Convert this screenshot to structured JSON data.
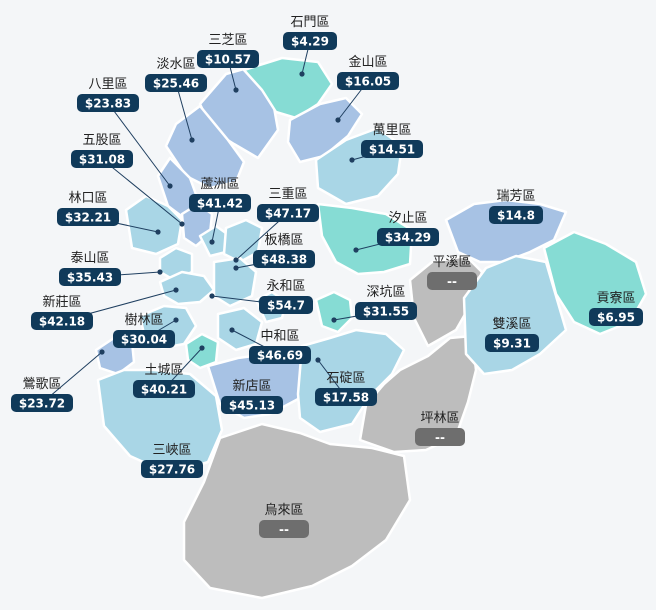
{
  "colors": {
    "teal": "#86dcd4",
    "light_blue": "#a9d6e6",
    "mid_blue": "#a7c2e4",
    "grey": "#bdbdbd",
    "badge": "#103a5a",
    "badge_na": "#6e6e6e"
  },
  "districts": [
    {
      "name": "石門區",
      "value": "$4.29"
    },
    {
      "name": "三芝區",
      "value": "$10.57"
    },
    {
      "name": "金山區",
      "value": "$16.05"
    },
    {
      "name": "淡水區",
      "value": "$25.46"
    },
    {
      "name": "八里區",
      "value": "$23.83"
    },
    {
      "name": "萬里區",
      "value": "$14.51"
    },
    {
      "name": "五股區",
      "value": "$31.08"
    },
    {
      "name": "蘆洲區",
      "value": "$41.42"
    },
    {
      "name": "三重區",
      "value": "$47.17"
    },
    {
      "name": "林口區",
      "value": "$32.21"
    },
    {
      "name": "汐止區",
      "value": "$34.29"
    },
    {
      "name": "瑞芳區",
      "value": "$14.8"
    },
    {
      "name": "板橋區",
      "value": "$48.38"
    },
    {
      "name": "泰山區",
      "value": "$35.43"
    },
    {
      "name": "平溪區",
      "value": "--"
    },
    {
      "name": "永和區",
      "value": "$54.7"
    },
    {
      "name": "深坑區",
      "value": "$31.55"
    },
    {
      "name": "新莊區",
      "value": "$42.18"
    },
    {
      "name": "貢寮區",
      "value": "$6.95"
    },
    {
      "name": "樹林區",
      "value": "$30.04"
    },
    {
      "name": "中和區",
      "value": "$46.69"
    },
    {
      "name": "雙溪區",
      "value": "$9.31"
    },
    {
      "name": "鶯歌區",
      "value": "$23.72"
    },
    {
      "name": "土城區",
      "value": "$40.21"
    },
    {
      "name": "石碇區",
      "value": "$17.58"
    },
    {
      "name": "新店區",
      "value": "$45.13"
    },
    {
      "name": "坪林區",
      "value": "--"
    },
    {
      "name": "三峽區",
      "value": "$27.76"
    },
    {
      "name": "烏來區",
      "value": "--"
    }
  ]
}
